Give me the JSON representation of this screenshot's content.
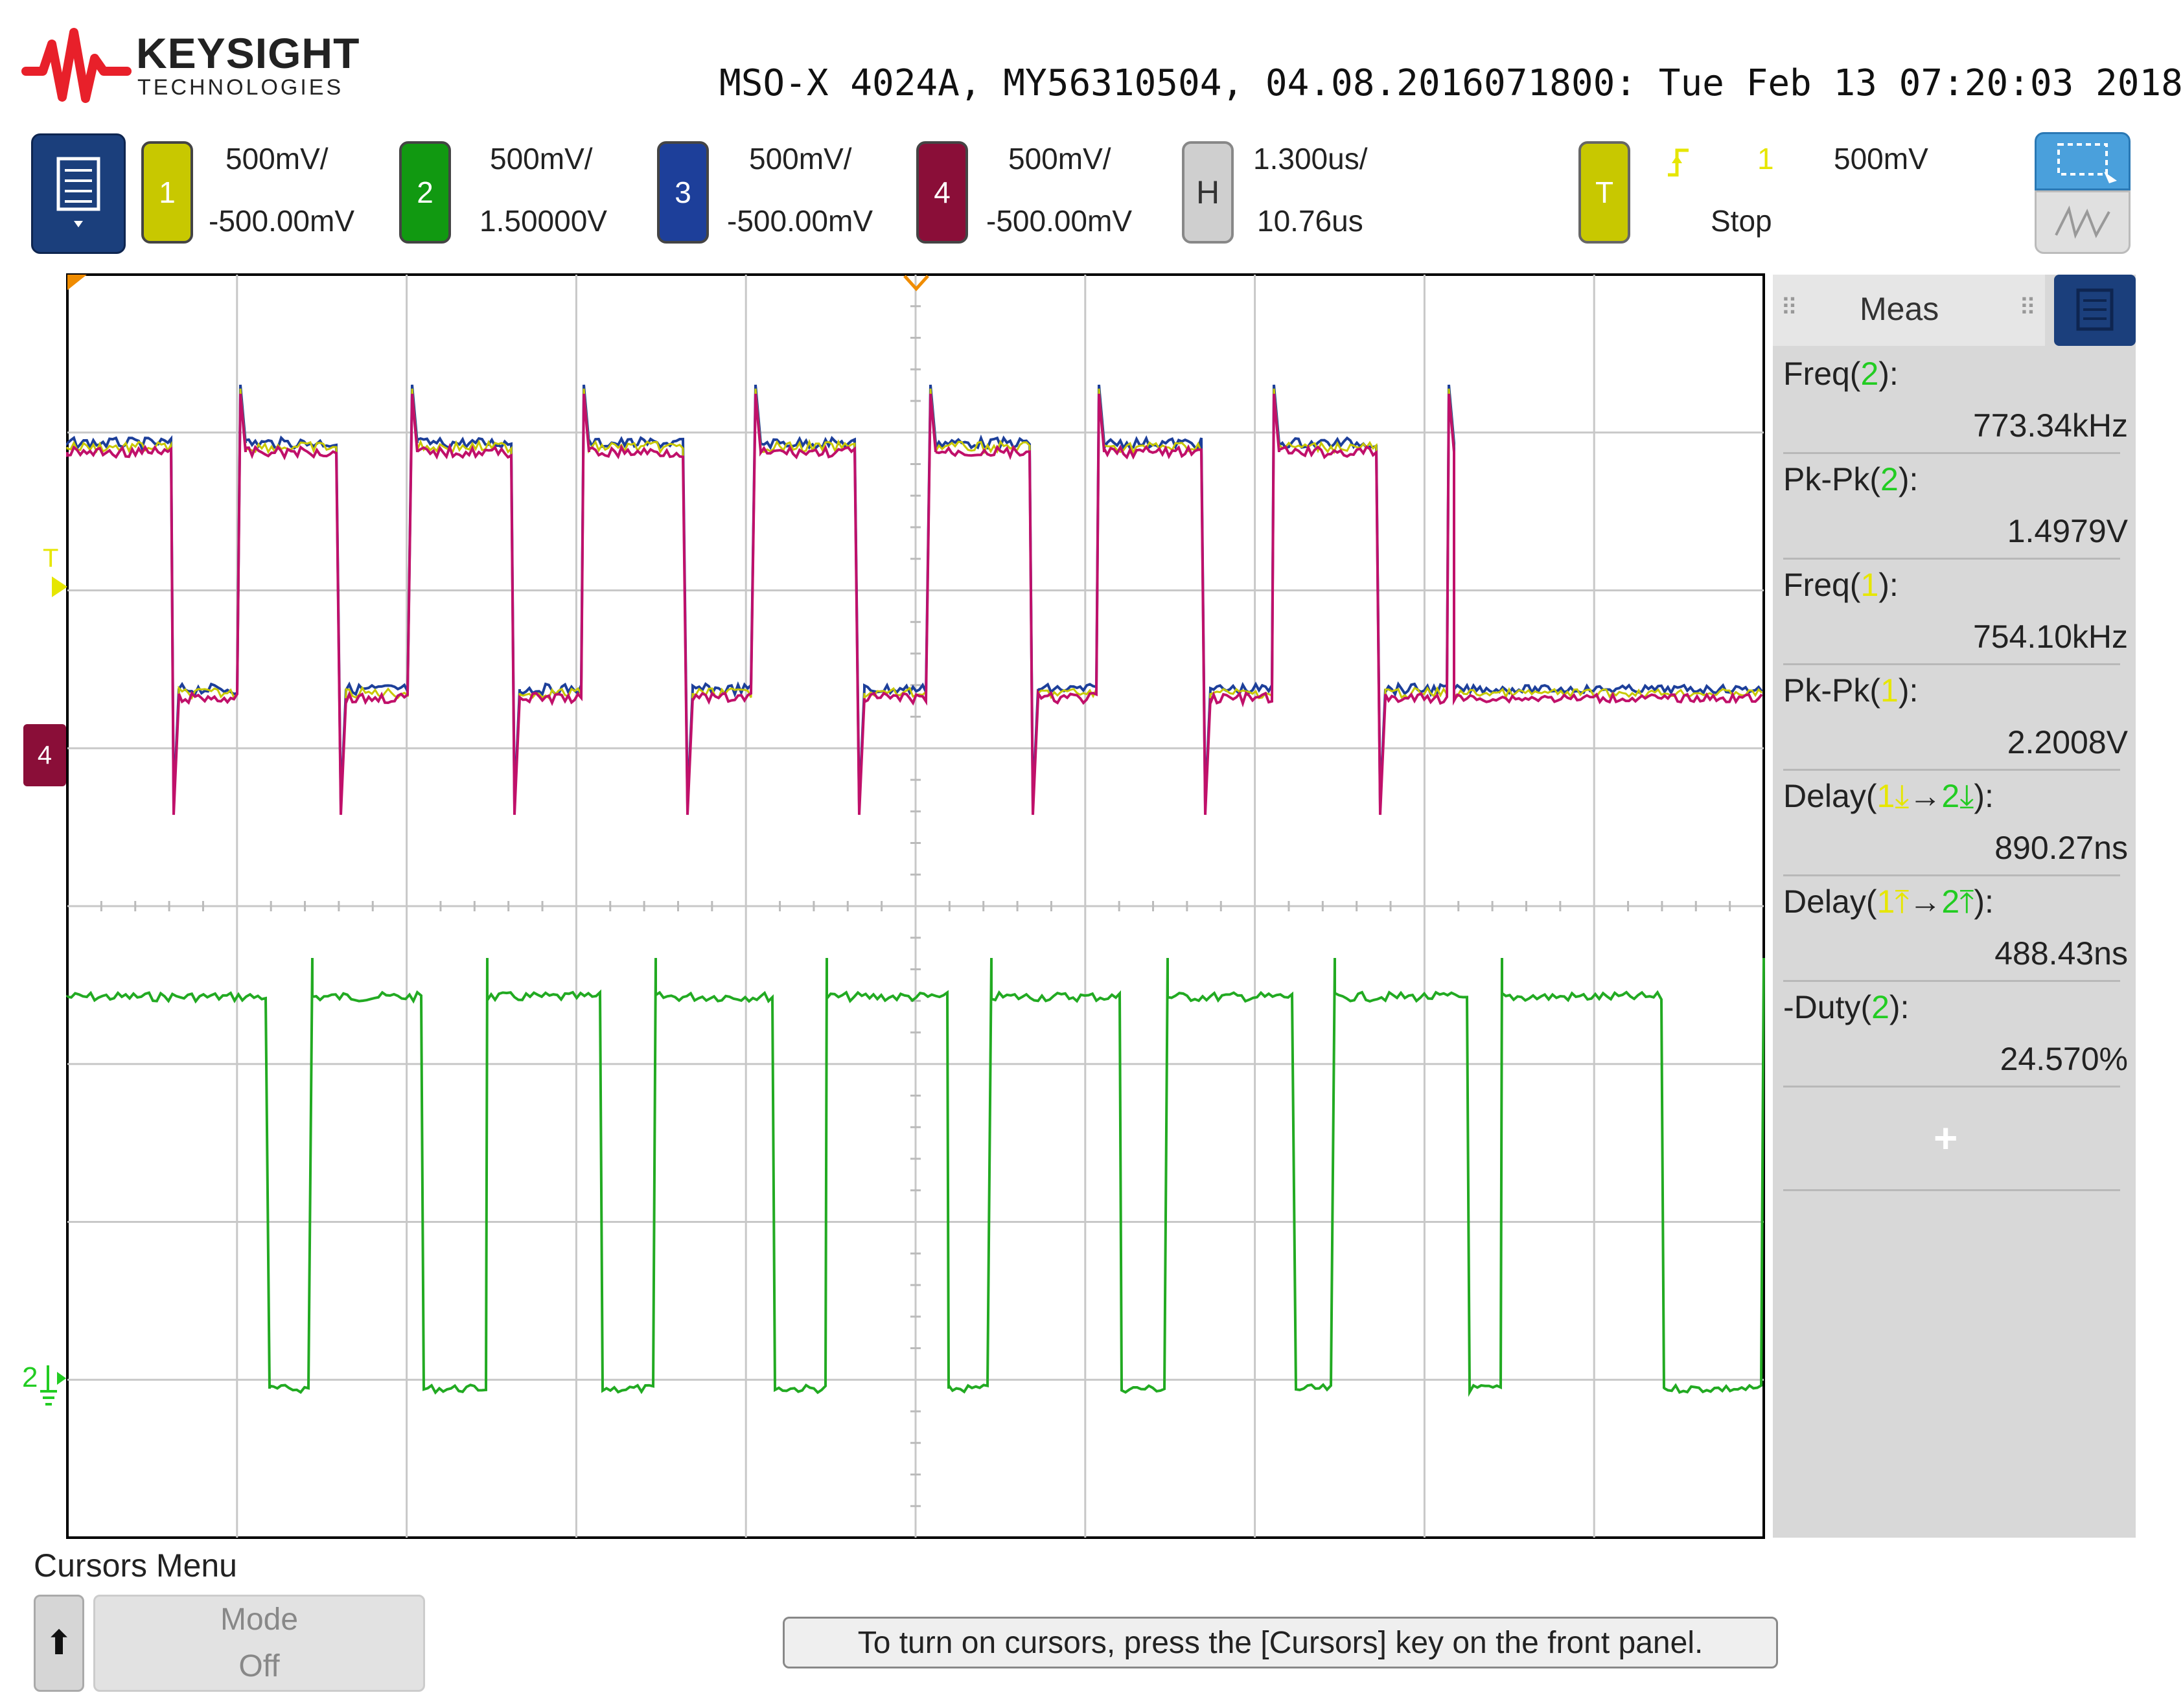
{
  "brand": {
    "name": "KEYSIGHT",
    "sub": "TECHNOLOGIES",
    "logo_color": "#e8202a"
  },
  "device_line": "MSO-X 4024A, MY56310504, 04.08.2016071800: Tue Feb 13 07:20:03 2018",
  "channels": [
    {
      "num": "1",
      "scale": "500mV/",
      "offset": "-500.00mV",
      "color": "#c8c800"
    },
    {
      "num": "2",
      "scale": "500mV/",
      "offset": "1.50000V",
      "color": "#22aa22"
    },
    {
      "num": "3",
      "scale": "500mV/",
      "offset": "-500.00mV",
      "color": "#1d3f9a"
    },
    {
      "num": "4",
      "scale": "500mV/",
      "offset": "-500.00mV",
      "color": "#9a1040"
    }
  ],
  "horizontal": {
    "label": "H",
    "scale": "1.300us/",
    "delay": "10.76us"
  },
  "trigger": {
    "label": "T",
    "source": "1",
    "level": "500mV",
    "state": "Stop"
  },
  "meas": {
    "title": "Meas",
    "items": [
      {
        "pre": "Freq(",
        "ch": "2",
        "post": "):",
        "value": "773.34kHz",
        "ch_color": "g"
      },
      {
        "pre": "Pk-Pk(",
        "ch": "2",
        "post": "):",
        "value": "1.4979V",
        "ch_color": "g"
      },
      {
        "pre": "Freq(",
        "ch": "1",
        "post": "):",
        "value": "754.10kHz",
        "ch_color": "y"
      },
      {
        "pre": "Pk-Pk(",
        "ch": "1",
        "post": "):",
        "value": "2.2008V",
        "ch_color": "y"
      },
      {
        "pre": "Delay(",
        "ch": "1",
        "mid": "→",
        "ch2": "2",
        "post": "):",
        "value": "890.27ns",
        "ch_color": "y",
        "edge": "fall"
      },
      {
        "pre": "Delay(",
        "ch": "1",
        "mid": "→",
        "ch2": "2",
        "post": "):",
        "value": "488.43ns",
        "ch_color": "y",
        "edge": "rise"
      },
      {
        "pre": "-Duty(",
        "ch": "2",
        "post": "):",
        "value": "24.570%",
        "ch_color": "g"
      }
    ],
    "add": "+"
  },
  "markers": {
    "trig_level": "T",
    "ch4_ground": "4",
    "ch2_ground": "2"
  },
  "cursors": {
    "title": "Cursors Menu",
    "up": "⬆",
    "mode_label": "Mode",
    "mode_value": "Off",
    "message": "To turn on cursors, press the [Cursors] key on the front panel."
  }
}
